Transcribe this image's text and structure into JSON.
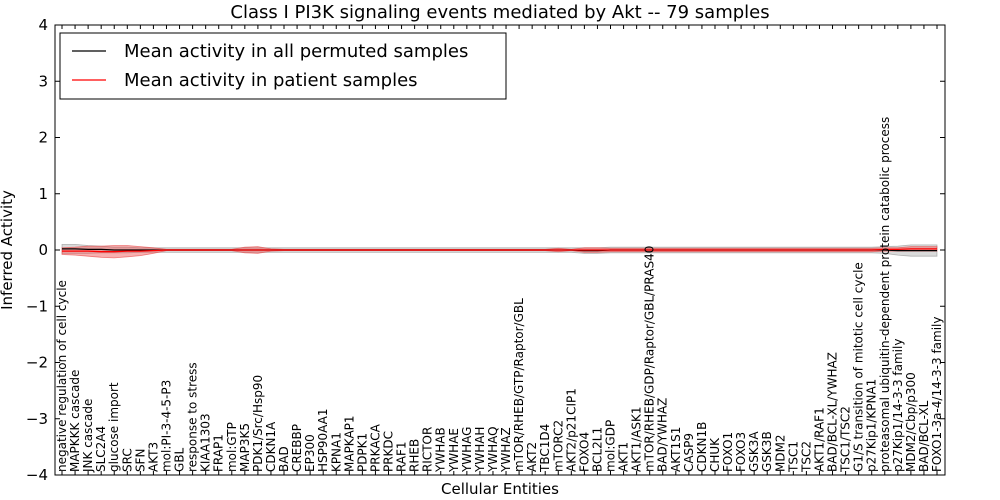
{
  "chart_data": {
    "type": "line",
    "title": "Class I PI3K signaling events mediated by Akt -- 79 samples",
    "xlabel": "Cellular Entities",
    "ylabel": "Inferred Activity",
    "ylim": [
      -4,
      4
    ],
    "yticks": [
      4,
      3,
      2,
      1,
      0,
      -1,
      -2,
      -3,
      -4
    ],
    "ytick_labels": [
      "4",
      "3",
      "2",
      "1",
      "0",
      "−1",
      "−2",
      "−3",
      "−4"
    ],
    "legend_position": "upper-left",
    "categories": [
      "negative regulation of cell cycle",
      "MAPKKK cascade",
      "JNK cascade",
      "SLC2A4",
      "glucose import",
      "SRC",
      "SFN",
      "AKT3",
      "mol:PI-3-4-5-P3",
      "GBL",
      "response to stress",
      "KIAA1303",
      "FRAP1",
      "mol:GTP",
      "MAP3K5",
      "PDK1/Src/Hsp90",
      "CDKN1A",
      "BAD",
      "CREBBP",
      "EP300",
      "HSP90AA1",
      "KPNA1",
      "MAPKAP1",
      "PDPK1",
      "PRKACA",
      "PRKDC",
      "RAF1",
      "RHEB",
      "RICTOR",
      "YWHAB",
      "YWHAE",
      "YWHAG",
      "YWHAH",
      "YWHAQ",
      "YWHAZ",
      "mTOR/RHEB/GTP/Raptor/GBL",
      "AKT2",
      "TBC1D4",
      "mTORC2",
      "AKT2/p21CIP1",
      "FOXO4",
      "BCL2L1",
      "mol:GDP",
      "AKT1",
      "AKT1/ASK1",
      "mTOR/RHEB/GDP/Raptor/GBL/PRAS40",
      "BAD/YWHAZ",
      "AKT1S1",
      "CASP9",
      "CDKN1B",
      "CHUK",
      "FOXO1",
      "FOXO3",
      "GSK3A",
      "GSK3B",
      "MDM2",
      "TSC1",
      "TSC2",
      "AKT1/RAF1",
      "BAD/BCL-XL/YWHAZ",
      "TSC1/TSC2",
      "G1/S transition of mitotic cell cycle",
      "p27Kip1/KPNA1",
      "proteasomal ubiquitin-dependent protein catabolic process",
      "p27Kip1/14-3-3 family",
      "MDM2/Cbp/p300",
      "BAD/BCL-XL",
      "FOXO1-3a-4/14-3-3 family"
    ],
    "series": [
      {
        "name": "Mean activity in all permuted samples",
        "color": "#000000",
        "values": [
          0.02,
          0.02,
          0.01,
          0.01,
          0.0,
          0.0,
          0.0,
          0.0,
          0.0,
          0.0,
          0.0,
          0.0,
          0.0,
          0.0,
          0.0,
          0.0,
          0.0,
          0.0,
          0.0,
          0.0,
          0.0,
          0.0,
          0.0,
          0.0,
          0.0,
          0.0,
          0.0,
          0.0,
          0.0,
          0.0,
          0.0,
          0.0,
          0.0,
          0.0,
          0.0,
          0.0,
          0.0,
          0.0,
          0.0,
          0.0,
          -0.01,
          -0.01,
          0.0,
          0.0,
          0.0,
          0.0,
          0.0,
          0.0,
          0.0,
          0.0,
          0.0,
          0.0,
          0.0,
          0.0,
          0.0,
          0.0,
          0.0,
          0.0,
          0.0,
          0.0,
          0.0,
          0.0,
          0.0,
          0.0,
          -0.01,
          -0.01,
          -0.01,
          -0.01
        ],
        "band": [
          0.08,
          0.08,
          0.07,
          0.06,
          0.05,
          0.05,
          0.04,
          0.04,
          0.04,
          0.04,
          0.04,
          0.04,
          0.04,
          0.04,
          0.04,
          0.04,
          0.04,
          0.04,
          0.04,
          0.04,
          0.04,
          0.04,
          0.04,
          0.04,
          0.04,
          0.04,
          0.04,
          0.04,
          0.04,
          0.04,
          0.04,
          0.04,
          0.04,
          0.04,
          0.04,
          0.04,
          0.04,
          0.04,
          0.04,
          0.04,
          0.05,
          0.05,
          0.05,
          0.05,
          0.05,
          0.05,
          0.05,
          0.05,
          0.05,
          0.05,
          0.05,
          0.05,
          0.05,
          0.05,
          0.05,
          0.05,
          0.05,
          0.05,
          0.05,
          0.05,
          0.05,
          0.05,
          0.05,
          0.06,
          0.08,
          0.1,
          0.1,
          0.1
        ]
      },
      {
        "name": "Mean activity in patient samples",
        "color": "#ff0000",
        "values": [
          -0.02,
          -0.02,
          -0.02,
          -0.03,
          -0.03,
          -0.02,
          -0.02,
          -0.01,
          0.0,
          0.0,
          0.0,
          0.0,
          0.0,
          0.0,
          0.0,
          0.0,
          0.0,
          0.0,
          0.0,
          0.0,
          0.0,
          0.0,
          0.0,
          0.0,
          0.0,
          0.0,
          0.0,
          0.0,
          0.0,
          0.0,
          0.0,
          0.0,
          0.0,
          0.0,
          0.0,
          0.0,
          0.0,
          0.0,
          0.0,
          0.0,
          0.0,
          0.0,
          0.0,
          0.0,
          0.0,
          0.0,
          0.0,
          0.0,
          0.0,
          0.0,
          0.0,
          0.0,
          0.0,
          0.0,
          0.0,
          0.0,
          0.0,
          0.0,
          0.0,
          0.0,
          0.0,
          0.0,
          0.0,
          0.01,
          0.01,
          0.02,
          0.02,
          0.02
        ],
        "band": [
          0.06,
          0.07,
          0.09,
          0.1,
          0.11,
          0.1,
          0.08,
          0.05,
          0.01,
          0.01,
          0.01,
          0.01,
          0.01,
          0.01,
          0.05,
          0.06,
          0.02,
          0.01,
          0.01,
          0.01,
          0.01,
          0.01,
          0.01,
          0.01,
          0.01,
          0.01,
          0.01,
          0.01,
          0.01,
          0.01,
          0.01,
          0.01,
          0.01,
          0.01,
          0.01,
          0.01,
          0.01,
          0.01,
          0.03,
          0.01,
          0.04,
          0.04,
          0.03,
          0.03,
          0.03,
          0.03,
          0.03,
          0.03,
          0.03,
          0.03,
          0.03,
          0.03,
          0.03,
          0.03,
          0.03,
          0.03,
          0.03,
          0.03,
          0.03,
          0.03,
          0.03,
          0.03,
          0.03,
          0.03,
          0.03,
          0.04,
          0.04,
          0.04
        ]
      }
    ]
  }
}
